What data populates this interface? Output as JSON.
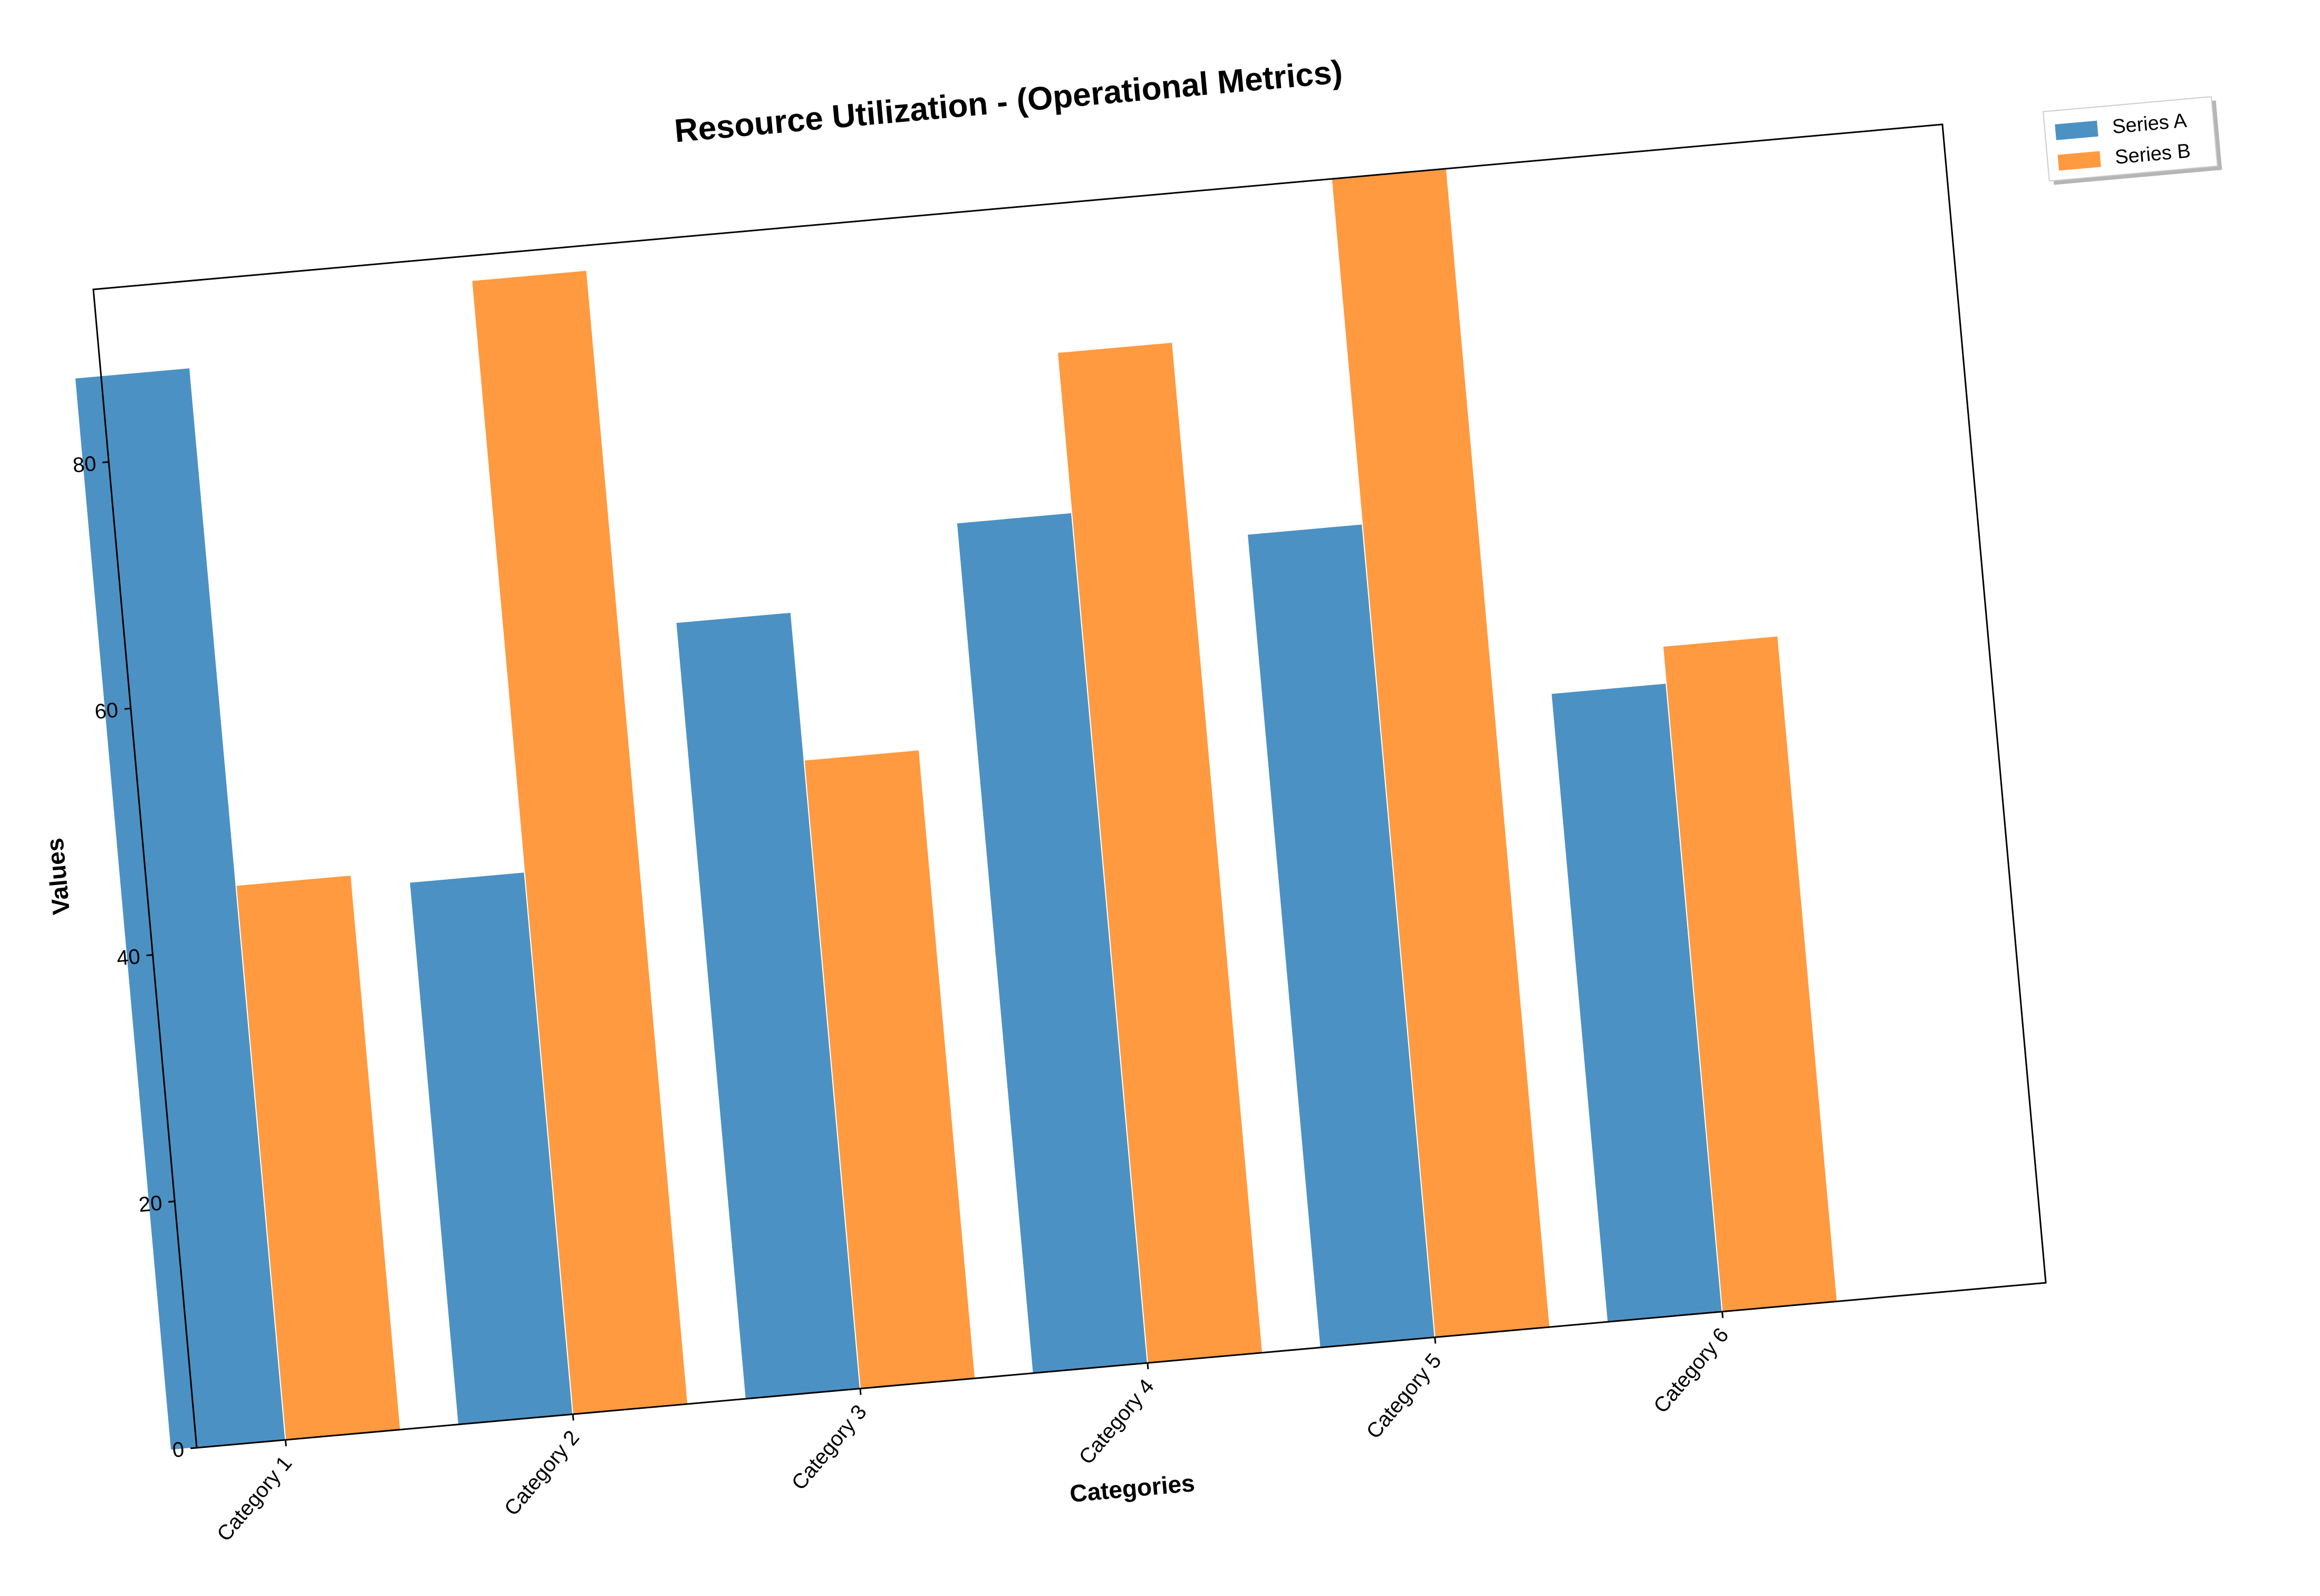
{
  "chart_data": {
    "type": "bar",
    "title": "Resource Utilization - (Operational Metrics)",
    "xlabel": "Categories",
    "ylabel": "Values",
    "categories": [
      "Category 1",
      "Category 2",
      "Category 3",
      "Category 4",
      "Category 5",
      "Category 6"
    ],
    "series": [
      {
        "name": "Series A",
        "color": "#4c91c3",
        "values": [
          87,
          44,
          63,
          69,
          66,
          51
        ]
      },
      {
        "name": "Series B",
        "color": "#ff9a40",
        "values": [
          45,
          92,
          51,
          82,
          94,
          54
        ]
      }
    ],
    "ylim": [
      0,
      94
    ],
    "yticks": [
      0,
      20,
      40,
      60,
      80
    ],
    "grid": false,
    "legend_position": "outside-top-right"
  }
}
